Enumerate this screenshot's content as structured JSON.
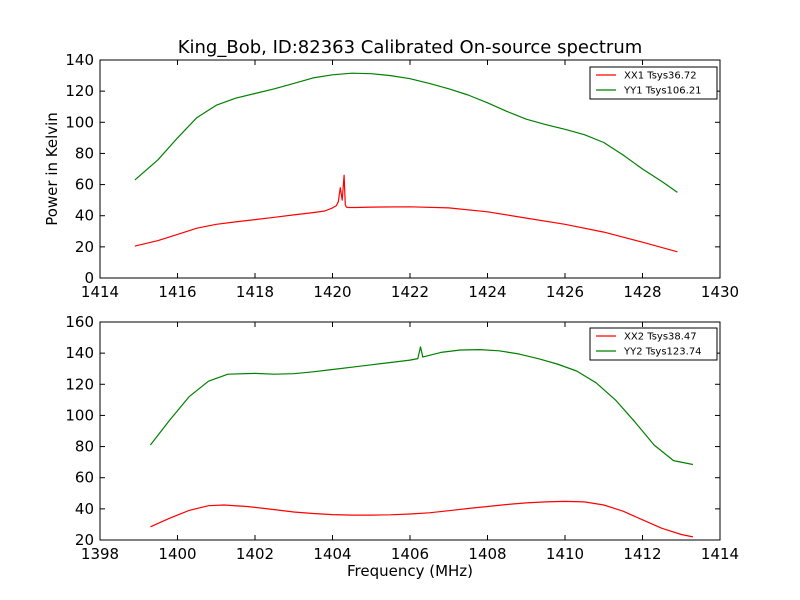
{
  "figure": {
    "title": "King_Bob, ID:82363 Calibrated On-source spectrum"
  },
  "chart_data": [
    {
      "type": "line",
      "title": "King_Bob, ID:82363 Calibrated On-source spectrum",
      "xlabel": "",
      "ylabel": "Power in Kelvin",
      "xlim": [
        1414,
        1430
      ],
      "ylim": [
        0,
        140
      ],
      "xticks": [
        "1414",
        "1416",
        "1418",
        "1420",
        "1422",
        "1424",
        "1426",
        "1428",
        "1430"
      ],
      "yticks": [
        "0",
        "20",
        "40",
        "60",
        "80",
        "100",
        "120",
        "140"
      ],
      "grid": false,
      "legend_position": "top-right",
      "series": [
        {
          "name": "XX1 Tsys36.72",
          "color": "#ff0000",
          "x": [
            1414.9,
            1415.5,
            1416,
            1416.5,
            1417,
            1417.5,
            1418,
            1418.5,
            1419,
            1419.5,
            1419.8,
            1420.0,
            1420.1,
            1420.15,
            1420.2,
            1420.25,
            1420.3,
            1420.33,
            1420.36,
            1420.4,
            1420.6,
            1421,
            1422,
            1423,
            1424,
            1425,
            1426,
            1427,
            1428,
            1428.9
          ],
          "y": [
            20.5,
            24,
            28,
            32,
            34.5,
            36,
            37.5,
            39,
            40.5,
            42,
            43,
            45,
            46.5,
            49,
            58,
            50,
            66,
            47,
            45.5,
            45.3,
            45.3,
            45.5,
            45.7,
            45,
            42.5,
            38.5,
            34.5,
            29.5,
            23,
            16.8
          ]
        },
        {
          "name": "YY1 Tsys106.21",
          "color": "#008000",
          "x": [
            1414.9,
            1415.5,
            1416,
            1416.5,
            1417,
            1417.5,
            1418,
            1418.5,
            1419,
            1419.5,
            1420,
            1420.5,
            1421,
            1421.5,
            1422,
            1422.5,
            1423,
            1423.5,
            1424,
            1424.5,
            1425,
            1425.5,
            1426,
            1426.5,
            1427,
            1427.5,
            1428,
            1428.5,
            1428.9
          ],
          "y": [
            63,
            76,
            90,
            103,
            111,
            115.5,
            118.5,
            121.5,
            125,
            128.5,
            130.5,
            131.5,
            131.2,
            130,
            128,
            125,
            121.5,
            117.5,
            112.5,
            107,
            102,
            98.5,
            95.5,
            92,
            87,
            79,
            70,
            62,
            55
          ]
        }
      ]
    },
    {
      "type": "line",
      "title": "",
      "xlabel": "Frequency (MHz)",
      "ylabel": "",
      "xlim": [
        1398,
        1414
      ],
      "ylim": [
        20,
        160
      ],
      "xticks": [
        "1398",
        "1400",
        "1402",
        "1404",
        "1406",
        "1408",
        "1410",
        "1412",
        "1414"
      ],
      "yticks": [
        "20",
        "40",
        "60",
        "80",
        "100",
        "120",
        "140",
        "160"
      ],
      "grid": false,
      "legend_position": "top-right",
      "series": [
        {
          "name": "XX2 Tsys38.47",
          "color": "#ff0000",
          "x": [
            1399.3,
            1399.8,
            1400.3,
            1400.8,
            1401.2,
            1401.8,
            1402.5,
            1403,
            1403.5,
            1404,
            1404.5,
            1405,
            1405.5,
            1406,
            1406.5,
            1407,
            1407.5,
            1408,
            1408.5,
            1409,
            1409.5,
            1410,
            1410.5,
            1411,
            1411.5,
            1412,
            1412.5,
            1413,
            1413.3
          ],
          "y": [
            28.5,
            34,
            39,
            42,
            42.5,
            41.5,
            39.5,
            38,
            37,
            36.3,
            36,
            36,
            36.2,
            36.7,
            37.5,
            38.8,
            40.2,
            41.5,
            42.8,
            43.8,
            44.5,
            44.8,
            44.5,
            42.5,
            38.5,
            33,
            27.5,
            23.5,
            22
          ]
        },
        {
          "name": "YY2 Tsys123.74",
          "color": "#008000",
          "x": [
            1399.3,
            1399.8,
            1400.3,
            1400.8,
            1401.3,
            1402,
            1402.5,
            1403,
            1403.5,
            1404,
            1404.5,
            1405,
            1405.5,
            1406,
            1406.2,
            1406.27,
            1406.33,
            1406.4,
            1406.8,
            1407.3,
            1407.8,
            1408.3,
            1408.8,
            1409.3,
            1409.8,
            1410.3,
            1410.8,
            1411.3,
            1411.8,
            1412.3,
            1412.8,
            1413.3
          ],
          "y": [
            81,
            97,
            112,
            122,
            126.5,
            127,
            126.5,
            126.8,
            128,
            129.5,
            131,
            132.5,
            134,
            135.5,
            136.5,
            144,
            137.5,
            138,
            140.5,
            142,
            142.3,
            141.5,
            139.5,
            136.5,
            133,
            128.5,
            121,
            110,
            96,
            81,
            71,
            68.5
          ]
        }
      ]
    }
  ]
}
